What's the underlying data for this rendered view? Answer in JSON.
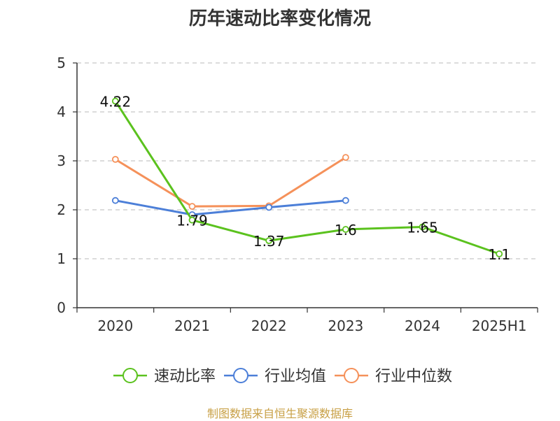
{
  "title": "历年速动比率变化情况",
  "source": "制图数据来自恒生聚源数据库",
  "chart_data": {
    "type": "line",
    "title": "历年速动比率变化情况",
    "categories": [
      "2020",
      "2021",
      "2022",
      "2023",
      "2024",
      "2025H1"
    ],
    "ylim": [
      0,
      5
    ],
    "yticks": [
      "0",
      "1",
      "2",
      "3",
      "4",
      "5"
    ],
    "grid": true,
    "legend_position": "bottom",
    "series": [
      {
        "name": "速动比率",
        "color": "#5bc21e",
        "values": [
          4.22,
          1.79,
          1.37,
          1.6,
          1.65,
          1.1
        ],
        "labels": [
          "4.22",
          "1.79",
          "1.37",
          "1.6",
          "1.65",
          "1.1"
        ]
      },
      {
        "name": "行业均值",
        "color": "#4c7fd8",
        "values": [
          2.19,
          1.9,
          2.05,
          2.19,
          null,
          null
        ]
      },
      {
        "name": "行业中位数",
        "color": "#f5915a",
        "values": [
          3.03,
          2.07,
          2.08,
          3.07,
          null,
          null
        ]
      }
    ]
  }
}
